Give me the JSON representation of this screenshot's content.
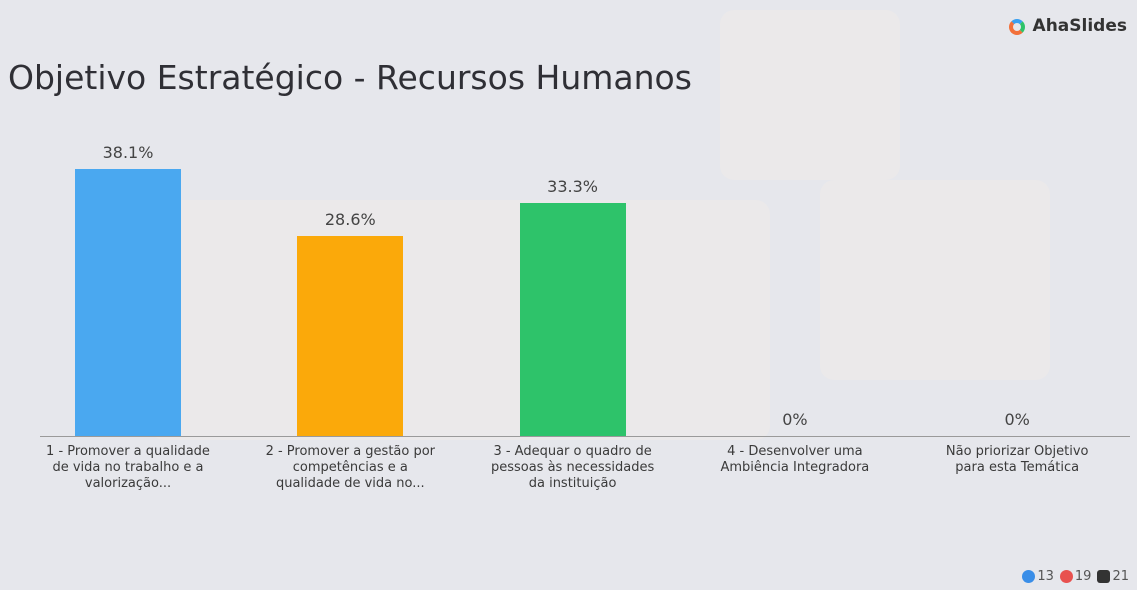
{
  "brand": "AhaSlides",
  "chart_data": {
    "type": "bar",
    "title": "Objetivo Estratégico - Recursos Humanos",
    "categories": [
      "1 - Promover a qualidade de vida no trabalho e a valorização...",
      "2 - Promover a gestão por competências e a qualidade de vida no...",
      "3 - Adequar o quadro de pessoas às necessidades da instituição",
      "4 - Desenvolver uma Ambiência Integradora",
      "Não priorizar Objetivo para esta Temática"
    ],
    "values": [
      38.1,
      28.6,
      33.3,
      0,
      0
    ],
    "value_labels": [
      "38.1%",
      "28.6%",
      "33.3%",
      "0%",
      "0%"
    ],
    "colors": [
      "#4aa8f0",
      "#fba90a",
      "#2ec36a",
      "#e8514f",
      "#8e6bd8"
    ]
  },
  "reactions": {
    "likes": 13,
    "hearts": 19,
    "hands": 21
  }
}
